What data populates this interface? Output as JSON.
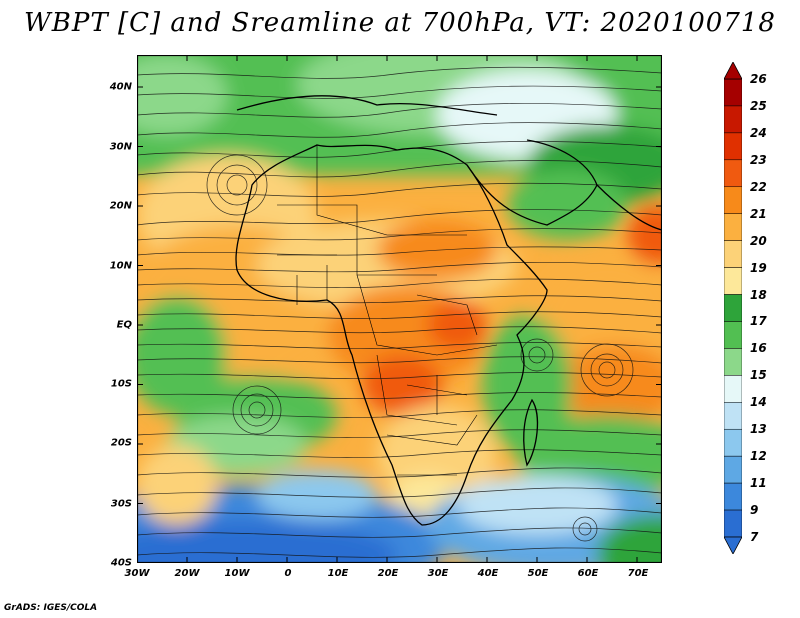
{
  "title": "WBPT [C] and Sreamline at 700hPa, VT: 2020100718",
  "credit": "GrADS: IGES/COLA",
  "lat_labels": [
    "40N",
    "30N",
    "20N",
    "10N",
    "EQ",
    "10S",
    "20S",
    "30S",
    "40S"
  ],
  "lon_labels": [
    "30W",
    "20W",
    "10W",
    "0",
    "10E",
    "20E",
    "30E",
    "40E",
    "50E",
    "60E",
    "70E"
  ],
  "colorbar": {
    "labels": [
      "26",
      "25",
      "24",
      "23",
      "22",
      "21",
      "20",
      "19",
      "18",
      "17",
      "16",
      "15",
      "14",
      "13",
      "12",
      "11",
      "9",
      "7"
    ],
    "colors": [
      "#a50000",
      "#c81800",
      "#e03000",
      "#f05a10",
      "#f78a1a",
      "#fbb040",
      "#fcd278",
      "#fde89a",
      "#2ea43a",
      "#52bf52",
      "#8cd88a",
      "#e6f8f8",
      "#bfe2f5",
      "#8cc8ee",
      "#5ea8e4",
      "#3c88dc",
      "#2a6ed2"
    ]
  }
}
